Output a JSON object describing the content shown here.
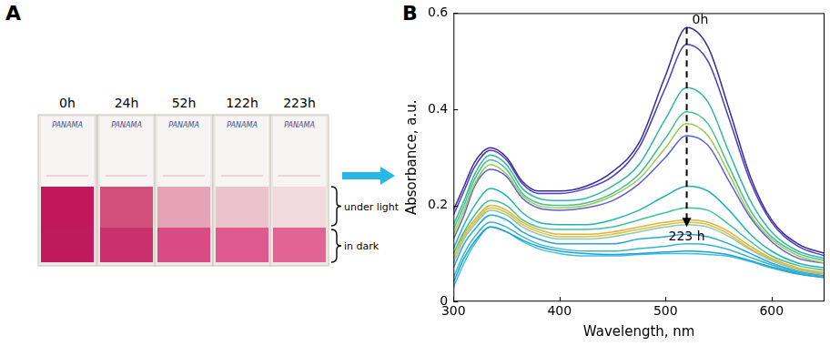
{
  "chart_data": {
    "type": "line",
    "panel_label": "B",
    "x_label": "Wavelength, nm",
    "y_label": "Absorbance, a.u.",
    "x": [
      300,
      310,
      320,
      335,
      350,
      365,
      380,
      400,
      425,
      450,
      475,
      500,
      520,
      540,
      560,
      580,
      600,
      625,
      650
    ],
    "series": [
      {
        "color": "#3a2a9a",
        "values": [
          0.19,
          0.24,
          0.29,
          0.32,
          0.3,
          0.25,
          0.23,
          0.23,
          0.24,
          0.27,
          0.33,
          0.47,
          0.57,
          0.53,
          0.4,
          0.26,
          0.17,
          0.12,
          0.1
        ]
      },
      {
        "color": "#4b3cc0",
        "values": [
          0.18,
          0.23,
          0.28,
          0.315,
          0.295,
          0.245,
          0.225,
          0.225,
          0.235,
          0.26,
          0.32,
          0.445,
          0.535,
          0.5,
          0.38,
          0.25,
          0.165,
          0.115,
          0.095
        ]
      },
      {
        "color": "#2fb8a8",
        "values": [
          0.16,
          0.21,
          0.265,
          0.305,
          0.285,
          0.235,
          0.215,
          0.21,
          0.215,
          0.24,
          0.285,
          0.38,
          0.445,
          0.415,
          0.31,
          0.21,
          0.145,
          0.105,
          0.09
        ]
      },
      {
        "color": "#45c08a",
        "values": [
          0.15,
          0.2,
          0.255,
          0.295,
          0.275,
          0.225,
          0.205,
          0.2,
          0.205,
          0.225,
          0.265,
          0.34,
          0.395,
          0.37,
          0.28,
          0.19,
          0.135,
          0.1,
          0.085
        ]
      },
      {
        "color": "#9cc94e",
        "values": [
          0.14,
          0.19,
          0.245,
          0.285,
          0.265,
          0.22,
          0.2,
          0.195,
          0.2,
          0.22,
          0.255,
          0.32,
          0.37,
          0.345,
          0.265,
          0.18,
          0.13,
          0.095,
          0.08
        ]
      },
      {
        "color": "#5b5fd6",
        "values": [
          0.13,
          0.18,
          0.24,
          0.275,
          0.26,
          0.215,
          0.195,
          0.19,
          0.195,
          0.21,
          0.245,
          0.3,
          0.345,
          0.325,
          0.25,
          0.175,
          0.125,
          0.09,
          0.08
        ]
      },
      {
        "color": "#22b3b0",
        "values": [
          0.11,
          0.16,
          0.2,
          0.235,
          0.22,
          0.185,
          0.165,
          0.16,
          0.16,
          0.17,
          0.19,
          0.22,
          0.24,
          0.23,
          0.19,
          0.14,
          0.105,
          0.08,
          0.07
        ]
      },
      {
        "color": "#3cc39a",
        "values": [
          0.1,
          0.145,
          0.18,
          0.21,
          0.2,
          0.17,
          0.155,
          0.15,
          0.15,
          0.155,
          0.17,
          0.185,
          0.195,
          0.19,
          0.16,
          0.125,
          0.095,
          0.075,
          0.065
        ]
      },
      {
        "color": "#e0b43a",
        "values": [
          0.09,
          0.14,
          0.17,
          0.2,
          0.19,
          0.165,
          0.15,
          0.14,
          0.14,
          0.145,
          0.155,
          0.165,
          0.17,
          0.165,
          0.145,
          0.115,
          0.09,
          0.07,
          0.06
        ]
      },
      {
        "color": "#d8c24a",
        "values": [
          0.09,
          0.135,
          0.165,
          0.195,
          0.185,
          0.16,
          0.145,
          0.135,
          0.135,
          0.14,
          0.15,
          0.16,
          0.165,
          0.16,
          0.14,
          0.11,
          0.088,
          0.068,
          0.058
        ]
      },
      {
        "color": "#8fc6b0",
        "values": [
          0.08,
          0.13,
          0.16,
          0.19,
          0.18,
          0.155,
          0.14,
          0.13,
          0.13,
          0.135,
          0.145,
          0.155,
          0.16,
          0.155,
          0.135,
          0.108,
          0.085,
          0.066,
          0.056
        ]
      },
      {
        "color": "#2aa7d8",
        "values": [
          0.07,
          0.12,
          0.15,
          0.18,
          0.17,
          0.145,
          0.13,
          0.12,
          0.12,
          0.12,
          0.13,
          0.135,
          0.14,
          0.135,
          0.12,
          0.1,
          0.08,
          0.063,
          0.054
        ]
      },
      {
        "color": "#35b6cf",
        "values": [
          0.05,
          0.1,
          0.135,
          0.165,
          0.155,
          0.135,
          0.12,
          0.11,
          0.105,
          0.105,
          0.11,
          0.115,
          0.12,
          0.118,
          0.108,
          0.092,
          0.076,
          0.06,
          0.052
        ]
      },
      {
        "color": "#1fa0d0",
        "values": [
          0.04,
          0.09,
          0.125,
          0.155,
          0.145,
          0.128,
          0.115,
          0.105,
          0.1,
          0.098,
          0.1,
          0.103,
          0.105,
          0.103,
          0.097,
          0.085,
          0.072,
          0.058,
          0.05
        ]
      },
      {
        "color": "#3cc0e0",
        "values": [
          0.03,
          0.08,
          0.12,
          0.155,
          0.145,
          0.125,
          0.11,
          0.1,
          0.095,
          0.095,
          0.098,
          0.1,
          0.1,
          0.098,
          0.094,
          0.083,
          0.07,
          0.057,
          0.05
        ]
      }
    ],
    "xlim": [
      300,
      650
    ],
    "ylim": [
      0,
      0.6
    ],
    "xticks": [
      300,
      400,
      500,
      600
    ],
    "yticks": [
      0,
      0.2,
      0.4,
      0.6
    ],
    "grid": false,
    "marker": "none",
    "line_style": "solid",
    "annotations": [
      "0h",
      "223 h"
    ]
  },
  "photo_panel": {
    "label": "A",
    "cuvette_text": "PANAMA",
    "times": [
      "0h",
      "24h",
      "52h",
      "122h",
      "223h"
    ],
    "regions": [
      "under light",
      "in dark"
    ]
  }
}
